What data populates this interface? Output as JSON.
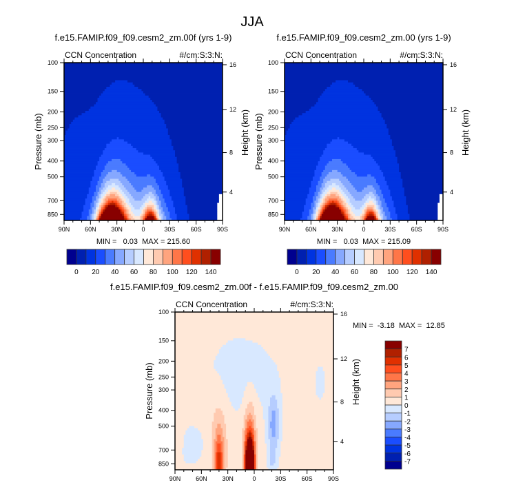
{
  "page_title": "JJA",
  "palette": [
    "#00008f",
    "#0020b0",
    "#0033e0",
    "#1a4dff",
    "#4a7bff",
    "#86a8ff",
    "#b6cdff",
    "#d8e8ff",
    "#ffe8d8",
    "#ffcab0",
    "#ffa47e",
    "#ff7648",
    "#ff4e1e",
    "#e03000",
    "#b02000",
    "#880000"
  ],
  "missing_color": "#ffffff",
  "chart_data": [
    {
      "type": "heatmap",
      "title": "f.e15.FAMIP.f09_f09.cesm2_zm.00f (yrs 1-9)",
      "left_string": "CCN Concentration",
      "right_string": "#/cm:S:3:N:",
      "xlabel": "",
      "ylabel": "Pressure (mb)",
      "ylabel_right": "Height (km)",
      "x_ticks": [
        "90N",
        "60N",
        "30N",
        "0",
        "30S",
        "60S",
        "90S"
      ],
      "y_ticks": [
        "100",
        "150",
        "200",
        "250",
        "300",
        "400",
        "500",
        "700",
        "850"
      ],
      "y_right_ticks": [
        "16",
        "12",
        "8",
        "4"
      ],
      "y_scale": "log",
      "ylim": [
        925,
        100
      ],
      "xlim": [
        90,
        -90
      ],
      "stats": "MIN =   0.03  MAX = 215.60",
      "levels": [
        0,
        10,
        20,
        30,
        40,
        50,
        60,
        70,
        80,
        90,
        100,
        110,
        120,
        130,
        140
      ],
      "colorbar_labels": [
        "0",
        "20",
        "40",
        "60",
        "80",
        "100",
        "120",
        "140"
      ],
      "colorbar_orientation": "horizontal"
    },
    {
      "type": "heatmap",
      "title": "f.e15.FAMIP.f09_f09.cesm2_zm.00 (yrs 1-9)",
      "left_string": "CCN Concentration",
      "right_string": "#/cm:S:3:N:",
      "xlabel": "",
      "ylabel": "Pressure (mb)",
      "ylabel_right": "Height (km)",
      "x_ticks": [
        "90N",
        "60N",
        "30N",
        "0",
        "30S",
        "60S",
        "90S"
      ],
      "y_ticks": [
        "100",
        "150",
        "200",
        "250",
        "300",
        "400",
        "500",
        "700",
        "850"
      ],
      "y_right_ticks": [
        "16",
        "12",
        "8",
        "4"
      ],
      "y_scale": "log",
      "ylim": [
        925,
        100
      ],
      "xlim": [
        90,
        -90
      ],
      "stats": "MIN =   0.03  MAX = 215.09",
      "levels": [
        0,
        10,
        20,
        30,
        40,
        50,
        60,
        70,
        80,
        90,
        100,
        110,
        120,
        130,
        140
      ],
      "colorbar_labels": [
        "0",
        "20",
        "40",
        "60",
        "80",
        "100",
        "120",
        "140"
      ],
      "colorbar_orientation": "horizontal"
    },
    {
      "type": "heatmap",
      "title": "f.e15.FAMIP.f09_f09.cesm2_zm.00f - f.e15.FAMIP.f09_f09.cesm2_zm.00",
      "left_string": "CCN Concentration",
      "right_string": "#/cm:S:3:N:",
      "xlabel": "",
      "ylabel": "Pressure (mb)",
      "ylabel_right": "Height (km)",
      "x_ticks": [
        "90N",
        "60N",
        "30N",
        "0",
        "30S",
        "60S",
        "90S"
      ],
      "y_ticks": [
        "100",
        "150",
        "200",
        "250",
        "300",
        "400",
        "500",
        "700",
        "850"
      ],
      "y_right_ticks": [
        "16",
        "12",
        "8",
        "4"
      ],
      "y_scale": "log",
      "ylim": [
        925,
        100
      ],
      "xlim": [
        90,
        -90
      ],
      "stats": "MIN =  -3.18  MAX =  12.85",
      "levels": [
        -7,
        -6,
        -5,
        -4,
        -3,
        -2,
        -1,
        0,
        1,
        2,
        3,
        4,
        5,
        6,
        7
      ],
      "colorbar_labels": [
        "7",
        "6",
        "5",
        "4",
        "3",
        "2",
        "1",
        "0",
        "-1",
        "-2",
        "-3",
        "-4",
        "-5",
        "-6",
        "-7"
      ],
      "colorbar_orientation": "vertical"
    }
  ]
}
